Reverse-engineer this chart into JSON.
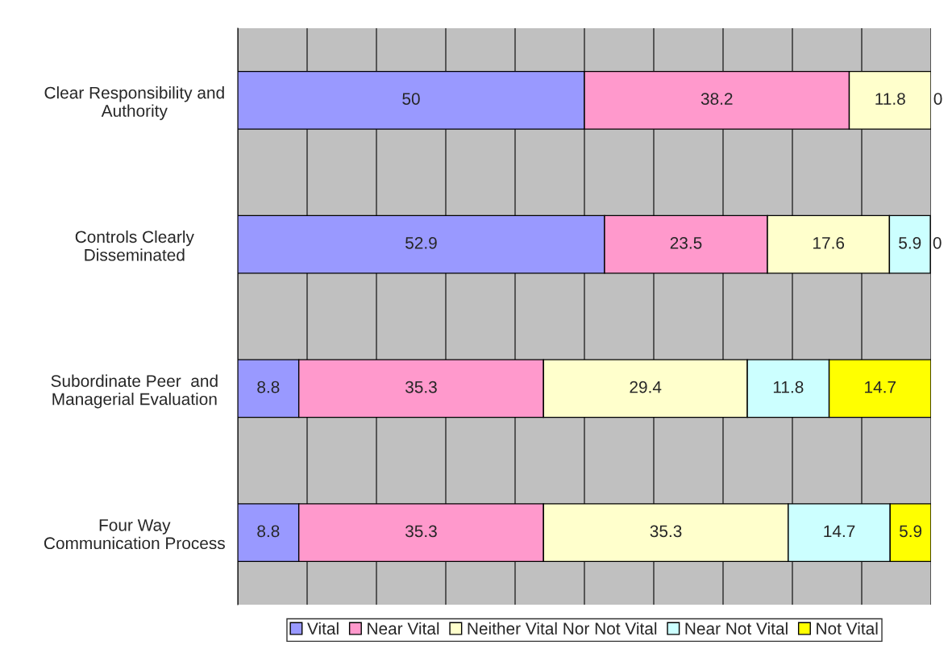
{
  "chart_data": {
    "type": "bar",
    "orientation": "horizontal",
    "stacked": true,
    "categories": [
      "Clear Responsibility and\nAuthority",
      "Controls Clearly\nDisseminated",
      "Subordinate Peer  and\nManagerial Evaluation",
      "Four Way\nCommunication Process"
    ],
    "series": [
      {
        "name": "Vital",
        "color": "#9999ff",
        "values": [
          50,
          52.9,
          8.8,
          8.8
        ],
        "value_labels": [
          "50",
          "52.9",
          "8.8",
          "8.8"
        ]
      },
      {
        "name": "Near Vital",
        "color": "#ff99cc",
        "values": [
          38.2,
          23.5,
          35.3,
          35.3
        ],
        "value_labels": [
          "38.2",
          "23.5",
          "35.3",
          "35.3"
        ]
      },
      {
        "name": "Neither Vital Nor Not Vital",
        "color": "#ffffcc",
        "values": [
          11.8,
          17.6,
          29.4,
          35.3
        ],
        "value_labels": [
          "11.8",
          "17.6",
          "29.4",
          "35.3"
        ]
      },
      {
        "name": "Near Not Vital",
        "color": "#ccffff",
        "values": [
          0,
          5.9,
          11.8,
          14.7
        ],
        "value_labels": [
          "0",
          "5.9",
          "11.8",
          "14.7"
        ]
      },
      {
        "name": "Not Vital",
        "color": "#ffff00",
        "values": [
          null,
          0,
          14.7,
          5.9
        ],
        "value_labels": [
          null,
          "0",
          "14.7",
          "5.9"
        ]
      }
    ],
    "xlim": [
      0,
      100
    ],
    "xticks": [
      {
        "value": 0,
        "label": null
      },
      {
        "value": 10,
        "label": null
      },
      {
        "value": 20,
        "label": null
      },
      {
        "value": 30,
        "label": null
      },
      {
        "value": 40,
        "label": null
      },
      {
        "value": 50,
        "label": null
      },
      {
        "value": 60,
        "label": null
      },
      {
        "value": 70,
        "label": null
      },
      {
        "value": 80,
        "label": null
      },
      {
        "value": 90,
        "label": null
      },
      {
        "value": 100,
        "label": null
      }
    ],
    "tick_labels": "y",
    "grid": "x",
    "legend": "bottom"
  }
}
